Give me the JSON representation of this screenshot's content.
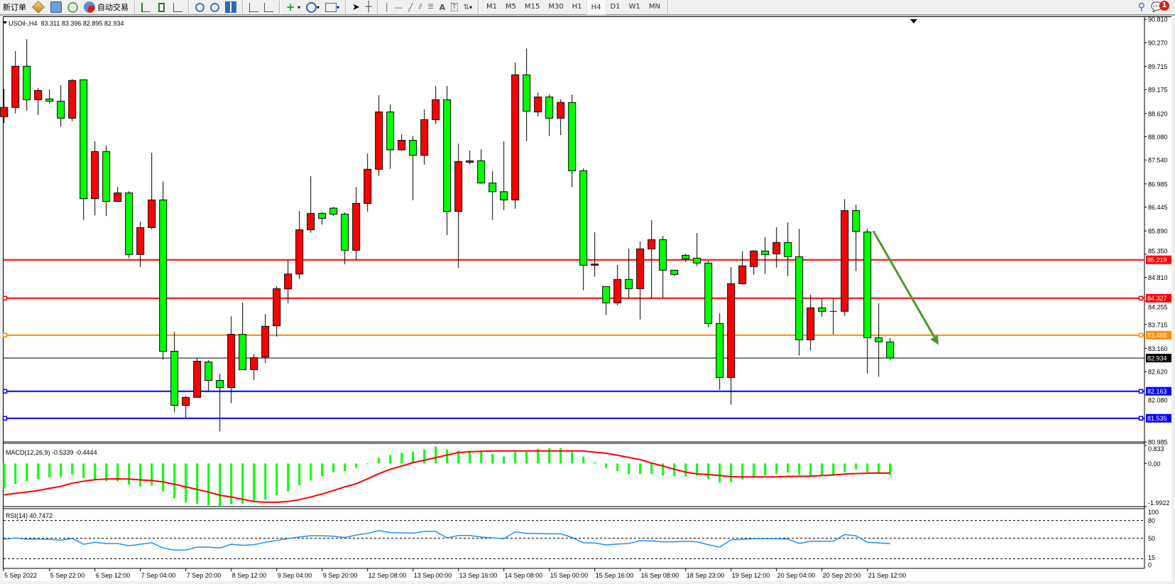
{
  "toolbar": {
    "new_order": "新订单",
    "auto_trading": "自动交易",
    "periods": [
      "M1",
      "M5",
      "M15",
      "M30",
      "H1",
      "H4",
      "D1",
      "W1",
      "MN"
    ],
    "active_period": "H4",
    "notification_count": "1",
    "icons": [
      "market-watch-icon",
      "data-window-icon",
      "signals-icon",
      "autotrading-icon",
      "bar-chart-icon",
      "candlestick-icon",
      "line-chart-icon",
      "zoom-in-icon",
      "zoom-out-icon",
      "tile-windows-icon",
      "chart-shift-icon",
      "autoscroll-icon",
      "new-chart-icon",
      "periodicity-icon",
      "templates-icon",
      "cursor-icon",
      "crosshair-icon",
      "vertical-line-icon",
      "horizontal-line-icon",
      "trendline-icon",
      "equidistant-channel-icon",
      "fibonacci-icon",
      "text-icon",
      "text-label-icon",
      "arrows-icon",
      "search-icon",
      "chat-icon"
    ]
  },
  "chart_data": {
    "type": "candlestick",
    "symbol_header": "USOil-,H4  83.311 83.396 82.895 82.934",
    "up_color": "#ff0000",
    "down_color": "#00ff00",
    "ylim": [
      80.985,
      90.81
    ],
    "price_ticks": [
      "90.810",
      "90.270",
      "89.715",
      "89.175",
      "88.620",
      "88.080",
      "87.540",
      "86.985",
      "86.445",
      "85.890",
      "85.350",
      "84.810",
      "84.255",
      "83.715",
      "83.160",
      "82.620",
      "82.080",
      "80.985"
    ],
    "time_labels": [
      "5 Sep 2022",
      "5 Sep 22:00",
      "6 Sep 12:00",
      "7 Sep 04:00",
      "7 Sep 20:00",
      "8 Sep 12:00",
      "9 Sep 04:00",
      "9 Sep 20:00",
      "12 Sep 08:00",
      "13 Sep 00:00",
      "13 Sep 16:00",
      "14 Sep 08:00",
      "15 Sep 00:00",
      "15 Sep 16:00",
      "16 Sep 08:00",
      "18 Sep 23:00",
      "19 Sep 12:00",
      "20 Sep 04:00",
      "20 Sep 20:00",
      "21 Sep 12:00"
    ],
    "ohlc": [
      [
        88.547,
        89.196,
        88.397,
        88.762
      ],
      [
        88.762,
        90.072,
        88.623,
        89.718
      ],
      [
        89.718,
        90.35,
        88.686,
        88.941
      ],
      [
        88.941,
        89.214,
        88.588,
        89.156
      ],
      [
        88.959,
        89.179,
        88.86,
        88.907
      ],
      [
        88.907,
        89.278,
        88.31,
        88.512
      ],
      [
        88.512,
        89.422,
        88.443,
        89.388
      ],
      [
        89.405,
        89.405,
        86.148,
        86.64
      ],
      [
        86.64,
        87.973,
        86.252,
        87.736
      ],
      [
        87.736,
        87.875,
        86.24,
        86.577
      ],
      [
        86.577,
        86.913,
        86.559,
        86.774
      ],
      [
        86.774,
        86.814,
        85.255,
        85.342
      ],
      [
        85.342,
        86.107,
        85.052,
        85.968
      ],
      [
        85.968,
        87.707,
        85.927,
        86.611
      ],
      [
        86.611,
        87.046,
        82.902,
        83.093
      ],
      [
        83.093,
        83.545,
        81.673,
        81.835
      ],
      [
        81.835,
        82.056,
        81.55,
        82.021
      ],
      [
        82.021,
        82.948,
        82.021,
        82.861
      ],
      [
        82.844,
        82.89,
        82.177,
        82.415
      ],
      [
        82.415,
        82.566,
        81.23,
        82.247
      ],
      [
        82.247,
        83.905,
        81.888,
        83.487
      ],
      [
        83.487,
        84.223,
        82.664,
        82.664
      ],
      [
        82.664,
        83.03,
        82.427,
        82.943
      ],
      [
        82.96,
        83.957,
        82.821,
        83.673
      ],
      [
        83.684,
        84.6,
        83.435,
        84.548
      ],
      [
        84.542,
        85.209,
        84.206,
        84.888
      ],
      [
        84.888,
        86.351,
        84.774,
        85.916
      ],
      [
        85.916,
        87.162,
        85.846,
        86.298
      ],
      [
        86.298,
        86.322,
        86.038,
        86.182
      ],
      [
        86.42,
        86.449,
        86.24,
        86.281
      ],
      [
        86.281,
        86.322,
        85.116,
        85.441
      ],
      [
        85.441,
        86.913,
        85.22,
        86.53
      ],
      [
        86.53,
        87.689,
        86.339,
        87.324
      ],
      [
        87.324,
        89.046,
        87.168,
        88.657
      ],
      [
        88.657,
        88.831,
        87.336,
        87.776
      ],
      [
        87.776,
        88.136,
        87.747,
        87.997
      ],
      [
        87.997,
        88.089,
        86.605,
        87.649
      ],
      [
        87.649,
        88.715,
        87.434,
        88.478
      ],
      [
        88.478,
        89.26,
        88.373,
        88.941
      ],
      [
        88.941,
        89.26,
        85.794,
        86.345
      ],
      [
        86.345,
        87.921,
        85.035,
        87.504
      ],
      [
        87.487,
        87.759,
        87.44,
        87.521
      ],
      [
        87.521,
        87.788,
        86.988,
        87.005
      ],
      [
        87.005,
        87.278,
        86.142,
        86.803
      ],
      [
        86.803,
        87.973,
        86.374,
        86.611
      ],
      [
        86.611,
        89.805,
        86.408,
        89.521
      ],
      [
        89.521,
        90.135,
        87.973,
        88.675
      ],
      [
        88.657,
        89.109,
        88.553,
        89.005
      ],
      [
        89.005,
        89.063,
        88.095,
        88.512
      ],
      [
        88.512,
        88.947,
        88.118,
        88.878
      ],
      [
        88.876,
        89.058,
        86.905,
        87.29
      ],
      [
        87.29,
        87.345,
        84.51,
        85.093
      ],
      [
        85.093,
        85.859,
        84.823,
        85.121
      ],
      [
        84.598,
        84.598,
        83.932,
        84.218
      ],
      [
        84.218,
        85.099,
        84.163,
        84.763
      ],
      [
        84.763,
        85.479,
        84.333,
        84.548
      ],
      [
        84.548,
        85.644,
        83.832,
        85.473
      ],
      [
        85.473,
        86.139,
        84.333,
        85.688
      ],
      [
        85.688,
        85.776,
        84.333,
        84.978
      ],
      [
        84.978,
        84.978,
        84.84,
        84.879
      ],
      [
        85.324,
        85.363,
        85.17,
        85.242
      ],
      [
        85.258,
        85.842,
        85.071,
        85.143
      ],
      [
        85.143,
        85.203,
        83.656,
        83.739
      ],
      [
        83.739,
        83.976,
        82.197,
        82.483
      ],
      [
        82.483,
        85.049,
        81.85,
        84.664
      ],
      [
        84.664,
        85.413,
        84.642,
        85.077
      ],
      [
        85.06,
        85.446,
        84.873,
        85.424
      ],
      [
        85.424,
        85.743,
        84.89,
        85.341
      ],
      [
        85.358,
        85.974,
        85.038,
        85.622
      ],
      [
        85.622,
        86.09,
        84.84,
        85.291
      ],
      [
        85.291,
        85.941,
        82.99,
        83.359
      ],
      [
        83.359,
        84.405,
        83.106,
        84.102
      ],
      [
        84.102,
        84.311,
        83.898,
        84.02
      ],
      [
        84.02,
        84.311,
        83.485,
        84.02
      ],
      [
        84.022,
        86.63,
        83.915,
        86.362
      ],
      [
        86.362,
        86.499,
        84.955,
        85.878
      ],
      [
        85.867,
        85.939,
        82.58,
        83.406
      ],
      [
        83.406,
        84.208,
        82.5,
        83.313
      ],
      [
        83.311,
        83.396,
        82.895,
        82.934
      ]
    ],
    "horizontal_lines": [
      {
        "price": 85.219,
        "label": "85.219",
        "color": "#ff0000"
      },
      {
        "price": 84.327,
        "label": "84.327",
        "color": "#ff0000"
      },
      {
        "price": 83.468,
        "label": "83.468",
        "color": "#ff8c00"
      },
      {
        "price": 82.163,
        "label": "82.163",
        "color": "#0000ff"
      },
      {
        "price": 81.535,
        "label": "81.535",
        "color": "#0000ff"
      }
    ],
    "bid_line": {
      "price": 82.934,
      "label": "82.934",
      "color": "#000000"
    },
    "arrow": {
      "color": "#4a9a2a",
      "direction": "down",
      "from_price": 85.89,
      "to_price": 83.24
    },
    "macd": {
      "label": "MACD(12,26,9) -0.5339 -0.4444",
      "ticks": [
        "0.833",
        "0.00",
        "-1.9922"
      ],
      "ylim": [
        -1.9922,
        0.833
      ],
      "histogram_color": "#00ff00",
      "signal_color": "#ff0000",
      "histogram": [
        -1.15,
        -0.94,
        -0.82,
        -0.73,
        -0.65,
        -0.62,
        -0.52,
        -0.67,
        -0.74,
        -0.82,
        -0.82,
        -0.98,
        -1.06,
        -1.02,
        -1.29,
        -1.61,
        -1.8,
        -1.86,
        -1.94,
        -1.99,
        -1.88,
        -1.86,
        -1.76,
        -1.67,
        -1.47,
        -1.29,
        -1.01,
        -0.79,
        -0.59,
        -0.41,
        -0.35,
        -0.2,
        -0.02,
        0.26,
        0.39,
        0.49,
        0.55,
        0.64,
        0.78,
        0.65,
        0.59,
        0.59,
        0.53,
        0.45,
        0.33,
        0.53,
        0.53,
        0.67,
        0.71,
        0.71,
        0.53,
        0.32,
        0.06,
        -0.2,
        -0.35,
        -0.49,
        -0.49,
        -0.49,
        -0.56,
        -0.59,
        -0.59,
        -0.56,
        -0.71,
        -0.88,
        -0.85,
        -0.74,
        -0.61,
        -0.56,
        -0.47,
        -0.42,
        -0.53,
        -0.56,
        -0.54,
        -0.52,
        -0.39,
        -0.28,
        -0.4,
        -0.45,
        -0.5339
      ],
      "signal": [
        -1.45,
        -1.38,
        -1.32,
        -1.25,
        -1.15,
        -1.06,
        -0.91,
        -0.82,
        -0.75,
        -0.72,
        -0.71,
        -0.72,
        -0.76,
        -0.79,
        -0.85,
        -0.96,
        -1.08,
        -1.2,
        -1.32,
        -1.47,
        -1.55,
        -1.65,
        -1.76,
        -1.79,
        -1.79,
        -1.76,
        -1.67,
        -1.55,
        -1.41,
        -1.25,
        -1.08,
        -0.94,
        -0.71,
        -0.47,
        -0.27,
        -0.12,
        0.04,
        0.15,
        0.27,
        0.39,
        0.51,
        0.54,
        0.56,
        0.58,
        0.58,
        0.58,
        0.58,
        0.58,
        0.58,
        0.58,
        0.58,
        0.58,
        0.52,
        0.47,
        0.38,
        0.28,
        0.18,
        0.02,
        -0.12,
        -0.27,
        -0.4,
        -0.48,
        -0.51,
        -0.56,
        -0.61,
        -0.62,
        -0.62,
        -0.62,
        -0.62,
        -0.6,
        -0.59,
        -0.59,
        -0.56,
        -0.53,
        -0.49,
        -0.47,
        -0.45,
        -0.44,
        -0.4444
      ]
    },
    "rsi": {
      "label": "RSI(14) 40.7472",
      "ticks": [
        "100",
        "80",
        "50",
        "15",
        "0"
      ],
      "levels": [
        80,
        50,
        15
      ],
      "ylim": [
        0,
        100
      ],
      "color": "#1e90ff",
      "values": [
        48,
        50.4,
        48.4,
        48.4,
        48,
        46.7,
        49.6,
        39.7,
        43,
        41,
        41,
        37.2,
        39.7,
        42.2,
        33.5,
        29.8,
        29.8,
        34.8,
        34.8,
        33.5,
        39.7,
        38,
        38.9,
        43,
        46.3,
        49.2,
        52.1,
        54.1,
        54.1,
        53.3,
        51.2,
        55.3,
        58.2,
        62.8,
        59.5,
        59,
        58.6,
        61.5,
        61.5,
        50.4,
        54.5,
        54.5,
        52,
        50.4,
        49.2,
        60.7,
        58.2,
        57.8,
        57.4,
        57.4,
        51.2,
        42.2,
        41.8,
        38.5,
        40.1,
        41,
        45.9,
        45.5,
        43.8,
        43.8,
        44.7,
        43.8,
        38.9,
        34.8,
        47.1,
        47.9,
        49.2,
        49.2,
        49.2,
        48.4,
        41,
        44.7,
        44.7,
        44.7,
        56.2,
        54.1,
        43,
        41.8,
        40.7472
      ]
    }
  }
}
